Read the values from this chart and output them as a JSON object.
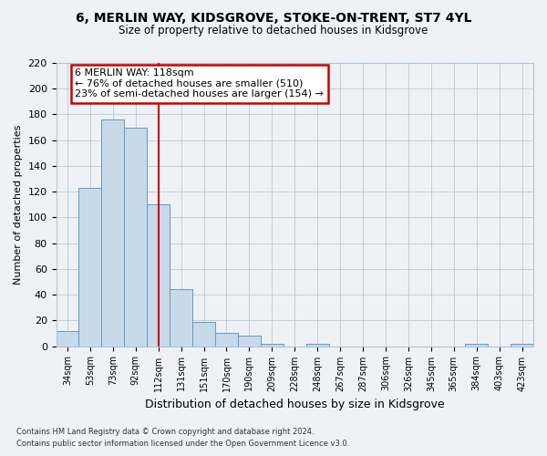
{
  "title": "6, MERLIN WAY, KIDSGROVE, STOKE-ON-TRENT, ST7 4YL",
  "subtitle": "Size of property relative to detached houses in Kidsgrove",
  "xlabel": "Distribution of detached houses by size in Kidsgrove",
  "ylabel": "Number of detached properties",
  "bar_labels": [
    "34sqm",
    "53sqm",
    "73sqm",
    "92sqm",
    "112sqm",
    "131sqm",
    "151sqm",
    "170sqm",
    "190sqm",
    "209sqm",
    "228sqm",
    "248sqm",
    "267sqm",
    "287sqm",
    "306sqm",
    "326sqm",
    "345sqm",
    "365sqm",
    "384sqm",
    "403sqm",
    "423sqm"
  ],
  "bar_values": [
    12,
    123,
    176,
    170,
    110,
    44,
    19,
    10,
    8,
    2,
    0,
    2,
    0,
    0,
    0,
    0,
    0,
    0,
    2,
    0,
    2
  ],
  "bar_color": "#c8daea",
  "bar_edge_color": "#6699bb",
  "vline_x": 4,
  "vline_color": "#cc0000",
  "annotation_title": "6 MERLIN WAY: 118sqm",
  "annotation_line1": "← 76% of detached houses are smaller (510)",
  "annotation_line2": "23% of semi-detached houses are larger (154) →",
  "annotation_box_facecolor": "#ffffff",
  "annotation_box_edge": "#cc0000",
  "ylim": [
    0,
    220
  ],
  "yticks": [
    0,
    20,
    40,
    60,
    80,
    100,
    120,
    140,
    160,
    180,
    200,
    220
  ],
  "footer1": "Contains HM Land Registry data © Crown copyright and database right 2024.",
  "footer2": "Contains public sector information licensed under the Open Government Licence v3.0.",
  "bg_color": "#eef2f7",
  "plot_bg_color": "#eef2f7",
  "grid_color": "#b0c4d8"
}
